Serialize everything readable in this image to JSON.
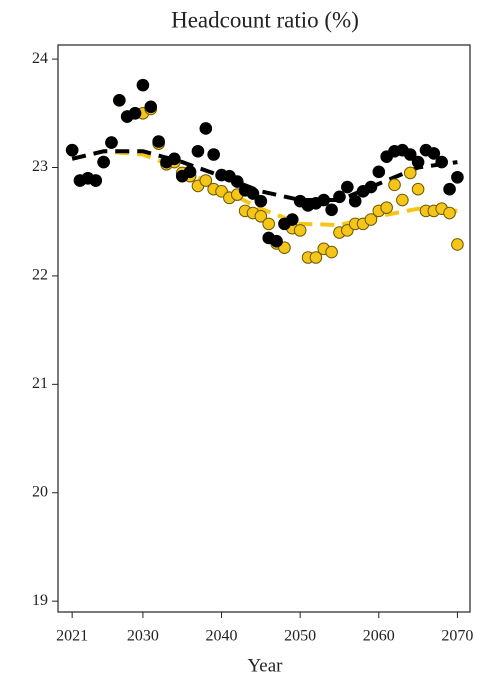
{
  "chart_data": {
    "type": "scatter",
    "title": "Headcount ratio (%)",
    "x_label": "Year",
    "xlim": [
      2019.2,
      2071.6
    ],
    "ylim": [
      18.9,
      24.13
    ],
    "xticks": [
      2021,
      2030,
      2040,
      2050,
      2060,
      2070
    ],
    "yticks": [
      19,
      20,
      21,
      22,
      23,
      24
    ],
    "series": [
      {
        "mark": "dashed-line",
        "color": "#f5c518",
        "x": [
          2021,
          2025,
          2030,
          2035,
          2040,
          2045,
          2050,
          2055,
          2060,
          2065,
          2070
        ],
        "values": [
          23.08,
          23.15,
          23.12,
          22.98,
          22.8,
          22.62,
          22.48,
          22.47,
          22.55,
          22.62,
          22.6
        ]
      },
      {
        "mark": "dashed-line",
        "color": "#000000",
        "x": [
          2021,
          2025,
          2030,
          2035,
          2040,
          2045,
          2050,
          2055,
          2060,
          2065,
          2070
        ],
        "values": [
          23.08,
          23.15,
          23.15,
          23.05,
          22.92,
          22.78,
          22.7,
          22.7,
          22.85,
          23.0,
          23.05
        ]
      },
      {
        "mark": "dot",
        "color": "#f5c518",
        "edge": "#6b5800",
        "x": [
          2021,
          2022,
          2023,
          2024,
          2025,
          2026,
          2027,
          2028,
          2029,
          2030,
          2031,
          2032,
          2033,
          2034,
          2035,
          2036,
          2037,
          2038,
          2039,
          2040,
          2041,
          2042,
          2043,
          2044,
          2045,
          2046,
          2047,
          2048,
          2049,
          2050,
          2051,
          2052,
          2053,
          2054,
          2055,
          2056,
          2057,
          2058,
          2059,
          2060,
          2061,
          2062,
          2063,
          2064,
          2065,
          2066,
          2067,
          2068,
          2069,
          2070
        ],
        "values": [
          23.16,
          22.88,
          22.9,
          22.88,
          23.05,
          23.23,
          23.62,
          23.47,
          23.5,
          23.5,
          23.54,
          23.22,
          23.03,
          23.05,
          22.95,
          22.92,
          22.83,
          22.88,
          22.8,
          22.78,
          22.72,
          22.75,
          22.6,
          22.58,
          22.55,
          22.48,
          22.3,
          22.26,
          22.44,
          22.42,
          22.17,
          22.17,
          22.25,
          22.22,
          22.4,
          22.42,
          22.48,
          22.48,
          22.52,
          22.6,
          22.63,
          22.84,
          22.7,
          22.95,
          22.8,
          22.6,
          22.6,
          22.62,
          22.58,
          22.29
        ]
      },
      {
        "mark": "dot",
        "color": "#000000",
        "edge": "#000000",
        "x": [
          2021,
          2022,
          2023,
          2024,
          2025,
          2026,
          2027,
          2028,
          2029,
          2030,
          2031,
          2032,
          2033,
          2034,
          2035,
          2036,
          2037,
          2038,
          2039,
          2040,
          2041,
          2042,
          2043,
          2044,
          2045,
          2046,
          2047,
          2048,
          2049,
          2050,
          2051,
          2052,
          2053,
          2054,
          2055,
          2056,
          2057,
          2058,
          2059,
          2060,
          2061,
          2062,
          2063,
          2064,
          2065,
          2066,
          2067,
          2068,
          2069,
          2070
        ],
        "values": [
          23.16,
          22.88,
          22.9,
          22.88,
          23.05,
          23.23,
          23.62,
          23.47,
          23.5,
          23.76,
          23.56,
          23.24,
          23.05,
          23.08,
          22.92,
          22.96,
          23.15,
          23.36,
          23.12,
          22.93,
          22.92,
          22.87,
          22.79,
          22.76,
          22.69,
          22.35,
          22.32,
          22.48,
          22.52,
          22.69,
          22.65,
          22.67,
          22.7,
          22.61,
          22.73,
          22.82,
          22.69,
          22.78,
          22.82,
          22.96,
          23.1,
          23.15,
          23.16,
          23.12,
          23.05,
          23.16,
          23.13,
          23.05,
          22.8,
          22.91
        ]
      }
    ]
  }
}
